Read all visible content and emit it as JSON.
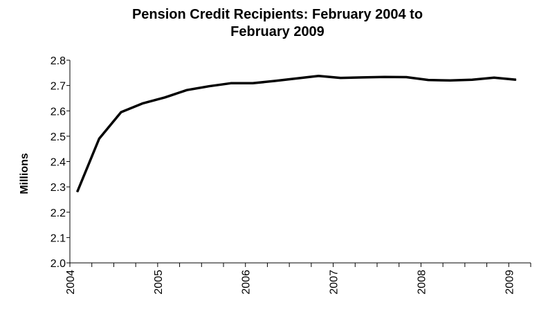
{
  "chart_data": {
    "type": "line",
    "title_lines": [
      "Pension Credit Recipients: February 2004 to",
      "February 2009"
    ],
    "xlabel": "",
    "ylabel": "Millions",
    "ylim": [
      2.0,
      2.8
    ],
    "y_ticks": [
      "2.0",
      "2.1",
      "2.2",
      "2.3",
      "2.4",
      "2.5",
      "2.6",
      "2.7",
      "2.8"
    ],
    "x_tick_labels": [
      "2004",
      "2005",
      "2006",
      "2007",
      "2008",
      "2009"
    ],
    "grid": false,
    "legend": "none",
    "line_color": "#000000",
    "series": [
      {
        "values": [
          {
            "x": "2004-02",
            "y": 2.28
          },
          {
            "x": "2004-05",
            "y": 2.49
          },
          {
            "x": "2004-08",
            "y": 2.595
          },
          {
            "x": "2004-11",
            "y": 2.63
          },
          {
            "x": "2005-02",
            "y": 2.653
          },
          {
            "x": "2005-05",
            "y": 2.682
          },
          {
            "x": "2005-08",
            "y": 2.697
          },
          {
            "x": "2005-11",
            "y": 2.709
          },
          {
            "x": "2006-02",
            "y": 2.709
          },
          {
            "x": "2006-05",
            "y": 2.718
          },
          {
            "x": "2006-08",
            "y": 2.728
          },
          {
            "x": "2006-11",
            "y": 2.738
          },
          {
            "x": "2007-02",
            "y": 2.73
          },
          {
            "x": "2007-05",
            "y": 2.732
          },
          {
            "x": "2007-08",
            "y": 2.734
          },
          {
            "x": "2007-11",
            "y": 2.733
          },
          {
            "x": "2008-02",
            "y": 2.722
          },
          {
            "x": "2008-05",
            "y": 2.72
          },
          {
            "x": "2008-08",
            "y": 2.723
          },
          {
            "x": "2008-11",
            "y": 2.731
          },
          {
            "x": "2009-02",
            "y": 2.723
          }
        ]
      }
    ]
  }
}
